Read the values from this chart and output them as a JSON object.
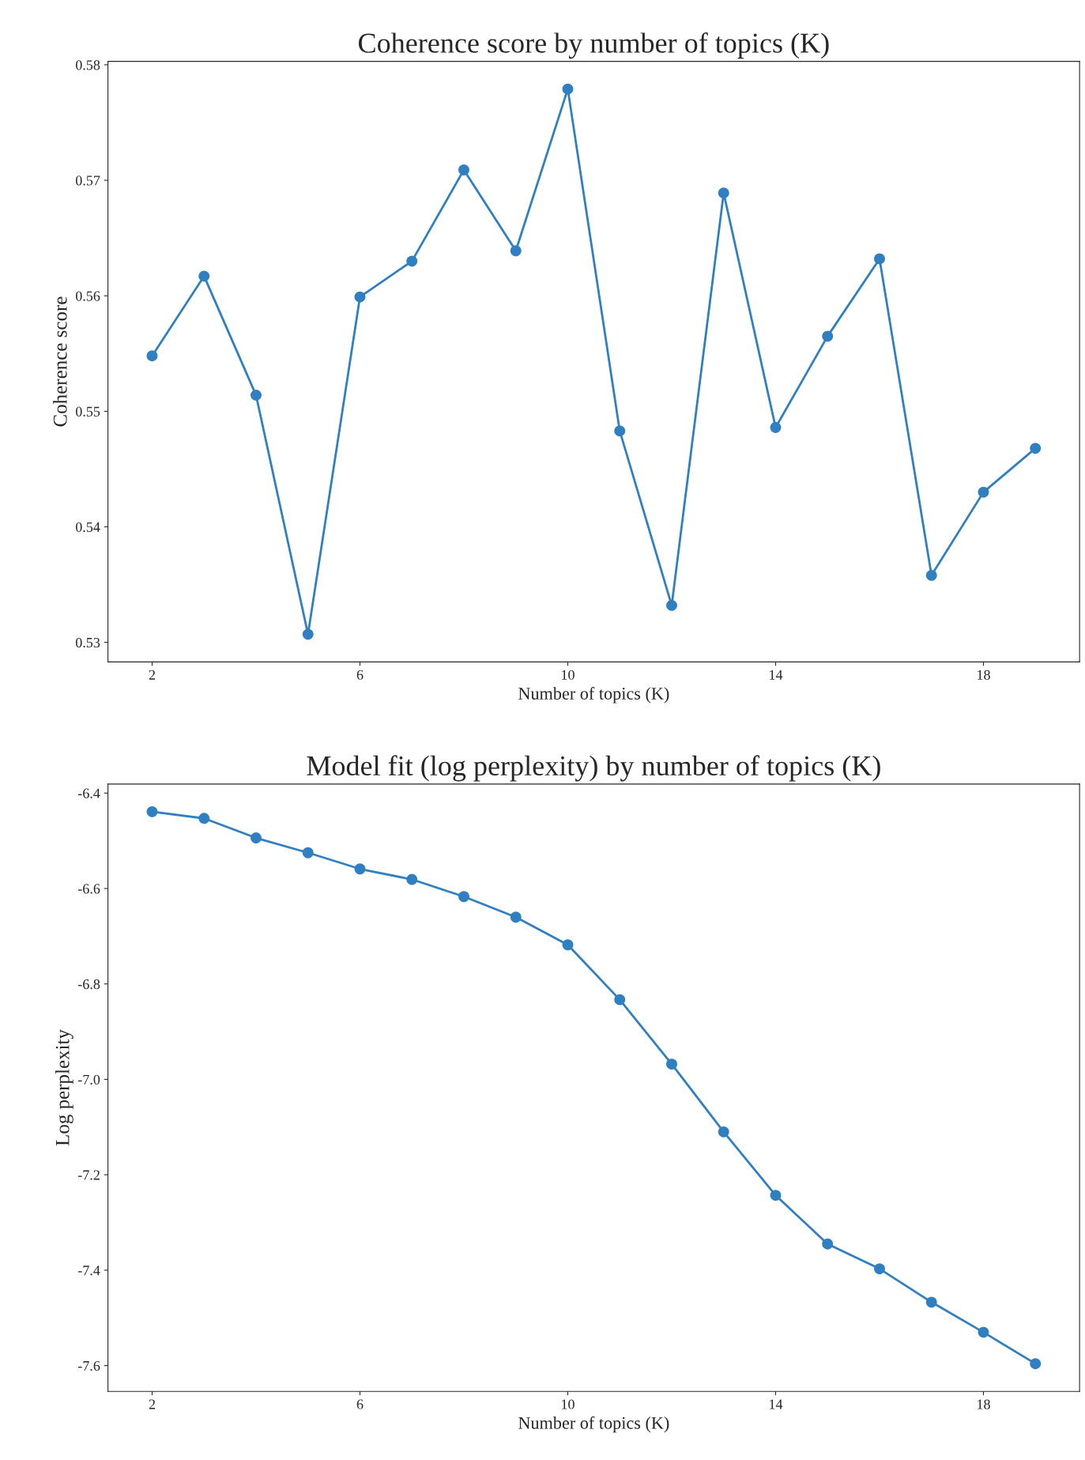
{
  "chart_data": [
    {
      "type": "line",
      "title": "Coherence score by number of topics (K)",
      "xlabel": "Number of topics (K)",
      "ylabel": "Coherence score",
      "x": [
        2,
        3,
        4,
        5,
        6,
        7,
        8,
        9,
        10,
        11,
        12,
        13,
        14,
        15,
        16,
        17,
        18,
        19
      ],
      "series": [
        {
          "color": "#2f7fc1",
          "values": [
            0.5548,
            0.5617,
            0.5514,
            0.5307,
            0.5599,
            0.563,
            0.5709,
            0.5639,
            0.5779,
            0.5483,
            0.5332,
            0.5689,
            0.5486,
            0.5565,
            0.5632,
            0.5358,
            0.543,
            0.5468
          ]
        }
      ],
      "xlim": [
        1.15,
        19.85
      ],
      "ylim": [
        0.5283,
        0.5803
      ],
      "xticks": [
        2,
        6,
        10,
        14,
        18
      ],
      "yticks": [
        0.53,
        0.54,
        0.55,
        0.56,
        0.57,
        0.58
      ],
      "marker": "circle",
      "line_style": "solid",
      "grid": false,
      "legend": false
    },
    {
      "type": "line",
      "title": "Model fit (log perplexity) by number of topics (K)",
      "xlabel": "Number of topics (K)",
      "ylabel": "Log perplexity",
      "x": [
        2,
        3,
        4,
        5,
        6,
        7,
        8,
        9,
        10,
        11,
        12,
        13,
        14,
        15,
        16,
        17,
        18,
        19
      ],
      "series": [
        {
          "color": "#2f7fc1",
          "values": [
            -6.439,
            -6.453,
            -6.494,
            -6.525,
            -6.559,
            -6.581,
            -6.617,
            -6.66,
            -6.718,
            -6.833,
            -6.968,
            -7.11,
            -7.243,
            -7.345,
            -7.397,
            -7.467,
            -7.53,
            -7.596
          ]
        }
      ],
      "xlim": [
        1.15,
        19.85
      ],
      "ylim": [
        -7.654,
        -6.381
      ],
      "xticks": [
        2,
        6,
        10,
        14,
        18
      ],
      "yticks": [
        -7.6,
        -7.4,
        -7.2,
        {
          "value": -7.0,
          "label": "-7.0"
        },
        -6.8,
        -6.6,
        -6.4
      ],
      "marker": "circle",
      "line_style": "solid",
      "grid": false,
      "legend": false
    }
  ]
}
